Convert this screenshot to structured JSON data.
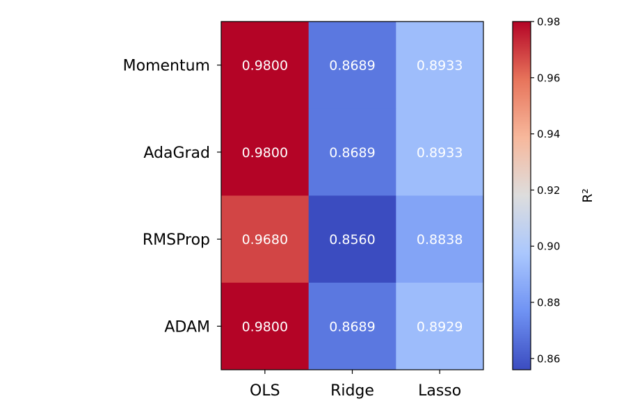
{
  "chart_data": {
    "type": "heatmap",
    "rows": [
      "Momentum",
      "AdaGrad",
      "RMSProp",
      "ADAM"
    ],
    "columns": [
      "OLS",
      "Ridge",
      "Lasso"
    ],
    "values": [
      [
        0.98,
        0.8689,
        0.8933
      ],
      [
        0.98,
        0.8689,
        0.8933
      ],
      [
        0.968,
        0.856,
        0.8838
      ],
      [
        0.98,
        0.8689,
        0.8929
      ]
    ],
    "cell_labels": [
      [
        "0.9800",
        "0.8689",
        "0.8933"
      ],
      [
        "0.9800",
        "0.8689",
        "0.8933"
      ],
      [
        "0.9680",
        "0.8560",
        "0.8838"
      ],
      [
        "0.9800",
        "0.8689",
        "0.8929"
      ]
    ],
    "colormap": "coolwarm",
    "colormap_stops": [
      "#3b4cc0",
      "#6f92f3",
      "#aac7fd",
      "#dddddd",
      "#f7b89c",
      "#e7745b",
      "#b40426"
    ],
    "vmin": 0.856,
    "vmax": 0.98,
    "colorbar": {
      "label": "R²",
      "ticks": [
        0.86,
        0.88,
        0.9,
        0.92,
        0.94,
        0.96,
        0.98
      ],
      "tick_labels": [
        "0.86",
        "0.88",
        "0.90",
        "0.92",
        "0.94",
        "0.96",
        "0.98"
      ]
    }
  }
}
